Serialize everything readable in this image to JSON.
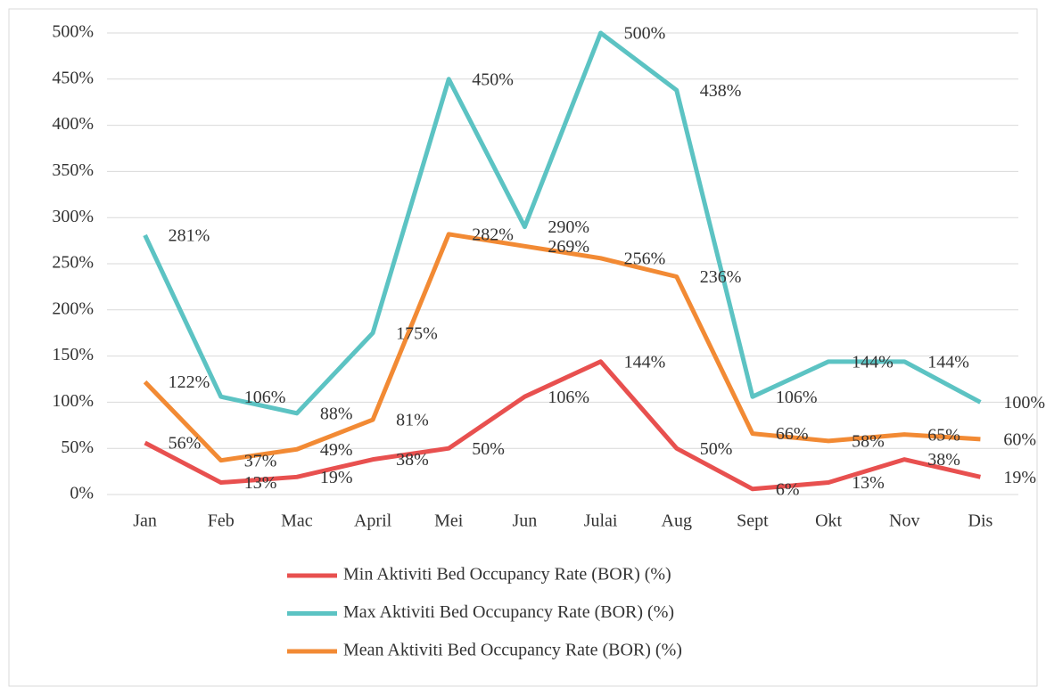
{
  "chart_data": {
    "type": "line",
    "categories": [
      "Jan",
      "Feb",
      "Mac",
      "April",
      "Mei",
      "Jun",
      "Julai",
      "Aug",
      "Sept",
      "Okt",
      "Nov",
      "Dis"
    ],
    "ylim": [
      0,
      500
    ],
    "yticks": [
      {
        "value": 0,
        "label": "0%"
      },
      {
        "value": 50,
        "label": "50%"
      },
      {
        "value": 100,
        "label": "100%"
      },
      {
        "value": 150,
        "label": "150%"
      },
      {
        "value": 200,
        "label": "200%"
      },
      {
        "value": 250,
        "label": "250%"
      },
      {
        "value": 300,
        "label": "300%"
      },
      {
        "value": 350,
        "label": "350%"
      },
      {
        "value": 400,
        "label": "400%"
      },
      {
        "value": 450,
        "label": "450%"
      },
      {
        "value": 500,
        "label": "500%"
      }
    ],
    "grid": true,
    "legend": "bottom",
    "series": [
      {
        "name": "Min Aktiviti Bed Occupancy Rate (BOR) (%)",
        "color": "#e8504f",
        "values": [
          56,
          13,
          19,
          38,
          50,
          106,
          144,
          50,
          6,
          13,
          38,
          19
        ],
        "value_labels": [
          "56%",
          "13%",
          "19%",
          "38%",
          "50%",
          "106%",
          "144%",
          "50%",
          "6%",
          "13%",
          "38%",
          "19%"
        ]
      },
      {
        "name": "Max Aktiviti Bed Occupancy Rate (BOR) (%)",
        "color": "#5cc3c3",
        "values": [
          281,
          106,
          88,
          175,
          450,
          290,
          500,
          438,
          106,
          144,
          144,
          100
        ],
        "value_labels": [
          "281%",
          "106%",
          "88%",
          "175%",
          "450%",
          "290%",
          "500%",
          "438%",
          "106%",
          "144%",
          "144%",
          "100%"
        ]
      },
      {
        "name": "Mean Aktiviti Bed Occupancy Rate (BOR) (%)",
        "color": "#f28a34",
        "values": [
          122,
          37,
          49,
          81,
          282,
          269,
          256,
          236,
          66,
          58,
          65,
          60
        ],
        "value_labels": [
          "122%",
          "37%",
          "49%",
          "81%",
          "282%",
          "269%",
          "256%",
          "236%",
          "66%",
          "58%",
          "65%",
          "60%"
        ]
      }
    ]
  }
}
